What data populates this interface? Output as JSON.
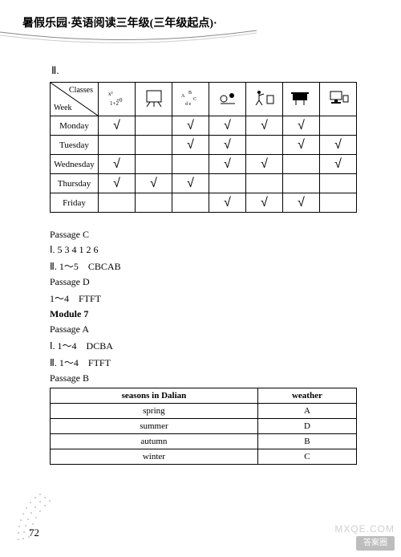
{
  "header": {
    "title": "暑假乐园·英语阅读三年级(三年级起点)·"
  },
  "sectionLabel": "Ⅱ.",
  "schedule": {
    "cornerTop": "Classes",
    "cornerBottom": "Week",
    "days": [
      "Monday",
      "Tuesday",
      "Wednesday",
      "Thursday",
      "Friday"
    ],
    "checkmark": "√",
    "grid": [
      [
        true,
        false,
        true,
        true,
        true,
        true,
        false
      ],
      [
        false,
        false,
        true,
        true,
        false,
        true,
        true
      ],
      [
        true,
        false,
        false,
        true,
        true,
        false,
        true
      ],
      [
        true,
        true,
        true,
        false,
        false,
        false,
        false
      ],
      [
        false,
        false,
        false,
        true,
        true,
        true,
        false
      ]
    ]
  },
  "midLines": [
    {
      "text": "Passage C",
      "bold": false
    },
    {
      "text": "Ⅰ. 5 3 4 1 2 6",
      "bold": false
    },
    {
      "text": "Ⅱ. 1～5　CBCAB",
      "bold": false
    },
    {
      "text": "Passage D",
      "bold": false
    },
    {
      "text": "1～4　FTFT",
      "bold": false
    },
    {
      "text": "Module 7",
      "bold": true
    },
    {
      "text": "Passage A",
      "bold": false
    },
    {
      "text": "Ⅰ. 1～4　DCBA",
      "bold": false
    },
    {
      "text": "Ⅱ. 1～4　FTFT",
      "bold": false
    },
    {
      "text": "Passage B",
      "bold": false
    }
  ],
  "seasonsTable": {
    "headers": [
      "seasons  in Dalian",
      "weather"
    ],
    "rows": [
      [
        "spring",
        "A"
      ],
      [
        "summer",
        "D"
      ],
      [
        "autumn",
        "B"
      ],
      [
        "winter",
        "C"
      ]
    ]
  },
  "pageNumber": "72",
  "watermark": "MXQE.COM",
  "badge": "答案圈"
}
